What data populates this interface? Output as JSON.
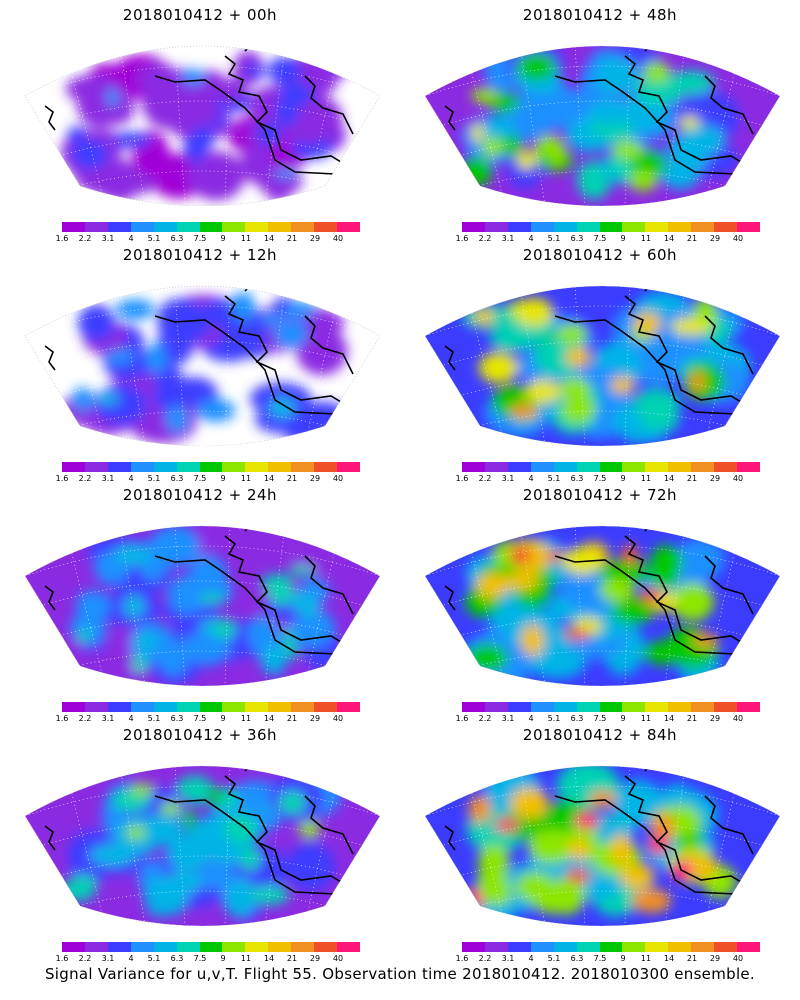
{
  "panels": [
    {
      "title": "2018010412 + 00h",
      "col": 0,
      "row": 0,
      "intensity": 0.15
    },
    {
      "title": "2018010412 + 48h",
      "col": 1,
      "row": 0,
      "intensity": 0.55
    },
    {
      "title": "2018010412 + 12h",
      "col": 0,
      "row": 1,
      "intensity": 0.25
    },
    {
      "title": "2018010412 + 60h",
      "col": 1,
      "row": 1,
      "intensity": 0.65
    },
    {
      "title": "2018010412 + 24h",
      "col": 0,
      "row": 2,
      "intensity": 0.35
    },
    {
      "title": "2018010412 + 72h",
      "col": 1,
      "row": 2,
      "intensity": 0.78
    },
    {
      "title": "2018010412 + 36h",
      "col": 0,
      "row": 3,
      "intensity": 0.45
    },
    {
      "title": "2018010412 + 84h",
      "col": 1,
      "row": 3,
      "intensity": 0.85
    }
  ],
  "colorbar": {
    "labels": [
      "1.6",
      "2.2",
      "3.1",
      "4",
      "5.1",
      "6.3",
      "7.5",
      "9",
      "11",
      "14",
      "21",
      "29",
      "40"
    ],
    "colors": [
      "#a000d8",
      "#8a2be2",
      "#3c3cff",
      "#1e90ff",
      "#00b4e6",
      "#00d2b4",
      "#00c800",
      "#8ce600",
      "#e6e600",
      "#f0c000",
      "#f09020",
      "#f05028",
      "#ff1478"
    ]
  },
  "caption": "Signal Variance for u,v,T. Flight 55. Observation time 2018010412. 2018010300 ensemble."
}
